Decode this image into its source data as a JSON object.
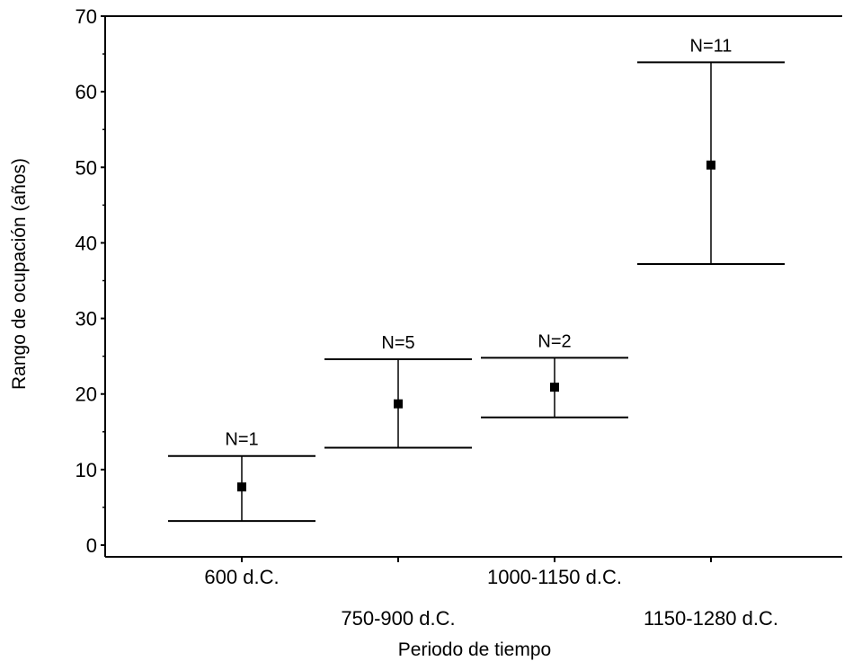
{
  "chart_data": {
    "type": "errorbar",
    "xlabel": "Periodo de tiempo",
    "ylabel": "Rango de ocupación (años)",
    "ylim": [
      0,
      70
    ],
    "yticks": [
      0,
      10,
      20,
      30,
      40,
      50,
      60,
      70
    ],
    "categories": [
      "600 d.C.",
      "750-900 d.C.",
      "1000-1150 d.C.",
      "1150-1280 d.C."
    ],
    "means": [
      7.7,
      18.7,
      20.9,
      50.3
    ],
    "upper": [
      11.8,
      24.6,
      24.8,
      63.9
    ],
    "lower": [
      3.2,
      12.9,
      16.9,
      37.2
    ],
    "n_labels": [
      "N=1",
      "N=5",
      "N=2",
      "N=11"
    ],
    "grid": false
  }
}
